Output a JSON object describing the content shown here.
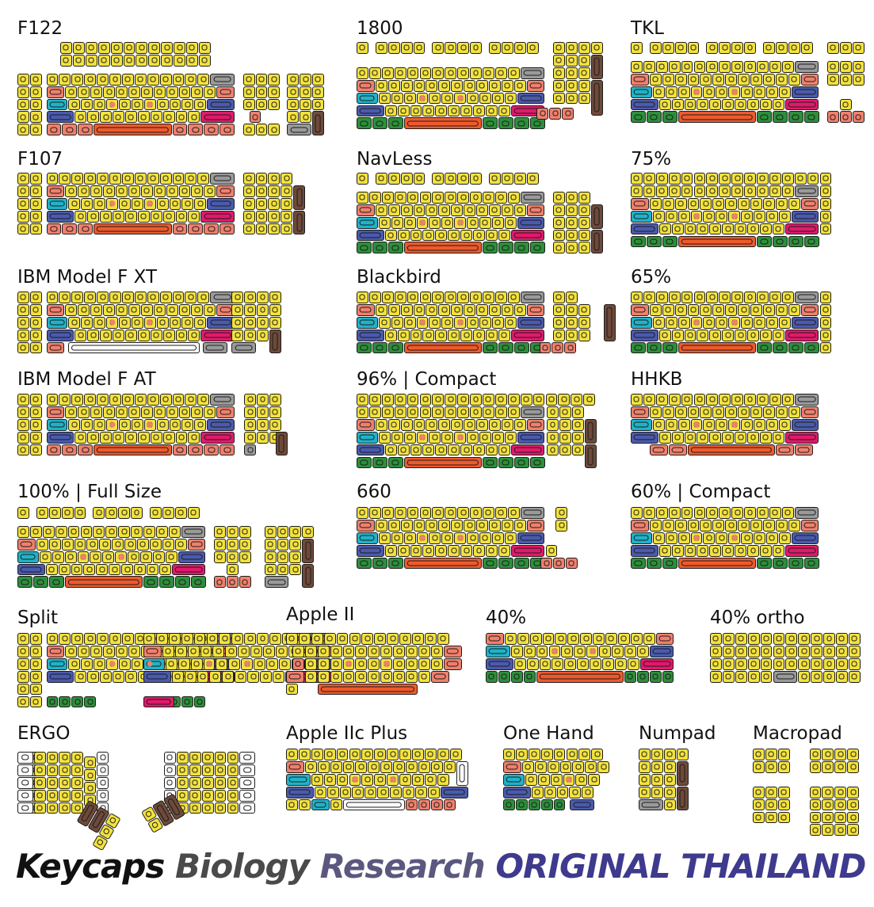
{
  "layouts": [
    {
      "id": "f122",
      "title": "F122"
    },
    {
      "id": "l1800",
      "title": "1800"
    },
    {
      "id": "tkl",
      "title": "TKL"
    },
    {
      "id": "f107",
      "title": "F107"
    },
    {
      "id": "navless",
      "title": "NavLess"
    },
    {
      "id": "p75",
      "title": "75%"
    },
    {
      "id": "ibmxt",
      "title": "IBM Model F XT"
    },
    {
      "id": "blackbird",
      "title": "Blackbird"
    },
    {
      "id": "p65",
      "title": "65%"
    },
    {
      "id": "ibmat",
      "title": "IBM Model F AT"
    },
    {
      "id": "p96",
      "title": "96% | Compact"
    },
    {
      "id": "hhkb",
      "title": "HHKB"
    },
    {
      "id": "p100",
      "title": "100% | Full Size"
    },
    {
      "id": "l660",
      "title": "660"
    },
    {
      "id": "p60",
      "title": "60% | Compact"
    },
    {
      "id": "split",
      "title": "Split"
    },
    {
      "id": "apple2",
      "title": "Apple II"
    },
    {
      "id": "p40",
      "title": "40%"
    },
    {
      "id": "p40o",
      "title": "40% ortho"
    },
    {
      "id": "ergo",
      "title": "ERGO"
    },
    {
      "id": "apple2c",
      "title": "Apple IIc Plus"
    },
    {
      "id": "onehand",
      "title": "One Hand"
    },
    {
      "id": "numpad",
      "title": "Numpad"
    },
    {
      "id": "macropad",
      "title": "Macropad"
    }
  ],
  "footer": {
    "word1": "Keycaps",
    "word2": "Biology",
    "word3": "Research",
    "word4": "ORIGINAL THAILAND"
  },
  "colors": {
    "alpha": "#f3e23c",
    "salmon": "#f0806c",
    "cyan": "#1fb3c9",
    "blue": "#4a5aae",
    "gray": "#9a9a9a",
    "magenta": "#e2196b",
    "orange": "#ee5a2c",
    "green": "#2d8f3a",
    "brown": "#6e4a3a",
    "white": "#ffffff",
    "footer_black": "#111111",
    "footer_gray": "#4a4a4a",
    "footer_slate": "#5a587e",
    "footer_indigo": "#3e3a8e"
  }
}
